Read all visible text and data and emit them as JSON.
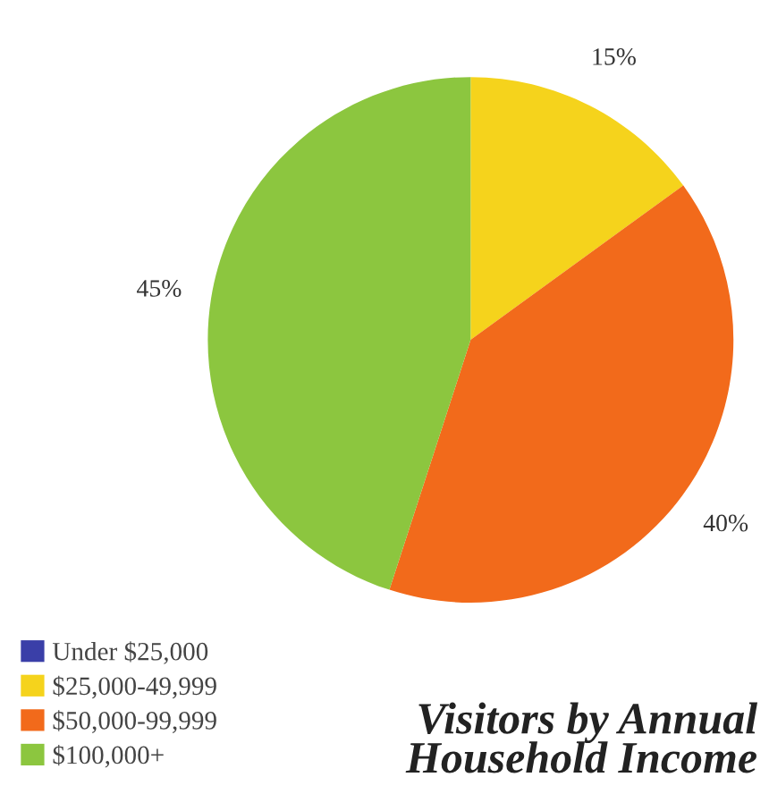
{
  "chart_data": {
    "type": "pie",
    "title": "Visitors by Annual Household Income",
    "categories": [
      "Under $25,000",
      "$25,000-49,999",
      "$50,000-99,999",
      "$100,000+"
    ],
    "values": [
      0,
      15,
      40,
      45
    ],
    "colors": [
      "#3a3fa8",
      "#f5d31c",
      "#f26a1b",
      "#8cc63f"
    ],
    "value_labels": [
      null,
      "15%",
      "40%",
      "45%"
    ],
    "legend": "bottom left"
  }
}
